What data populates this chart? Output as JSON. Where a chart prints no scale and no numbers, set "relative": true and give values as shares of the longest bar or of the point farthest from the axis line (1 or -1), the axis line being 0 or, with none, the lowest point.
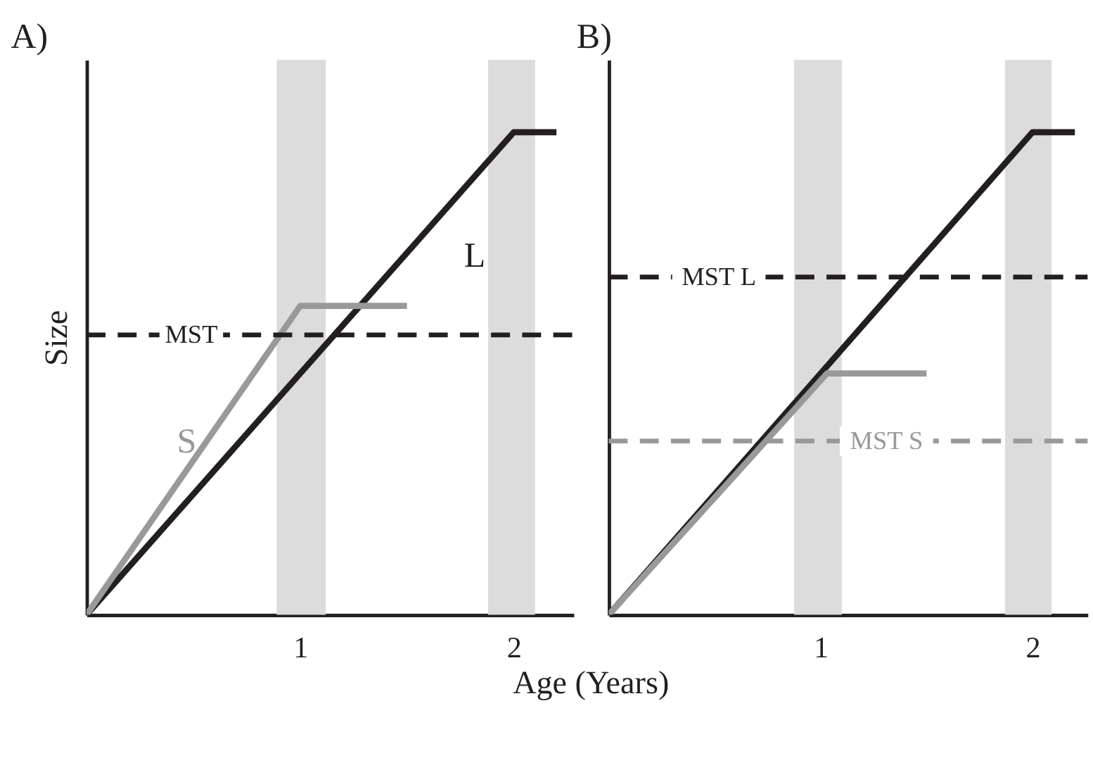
{
  "chart_data": [
    {
      "type": "line",
      "title": "A)",
      "xlabel": "Age (Years)",
      "ylabel": "Size",
      "relative": true,
      "xlim": [
        0,
        2.28
      ],
      "xticks": [
        1,
        2
      ],
      "tick_labels": "x",
      "grid": false,
      "line_style": "solid",
      "marker": "none",
      "series": [
        {
          "color": "#231f20",
          "x": [
            0,
            2,
            2.2
          ],
          "values": [
            0,
            1,
            1
          ]
        },
        {
          "color": "#999999",
          "x": [
            0,
            1,
            1.5
          ],
          "values": [
            0,
            0.64,
            0.64
          ]
        }
      ],
      "bands": [
        {
          "axis": "x",
          "from": 0.89,
          "to": 1.12,
          "color": "#dcdcdc"
        },
        {
          "axis": "x",
          "from": 1.88,
          "to": 2.1,
          "color": "#dcdcdc"
        }
      ],
      "ref_lines": [
        {
          "axis": "y",
          "value": 0.58,
          "label": "MST",
          "color": "#231f20",
          "line_style": "dashed"
        }
      ],
      "annotations": [
        "L",
        "S"
      ]
    },
    {
      "type": "line",
      "title": "B)",
      "relative": true,
      "xlim": [
        0,
        2.26
      ],
      "xticks": [
        1,
        2
      ],
      "tick_labels": "x",
      "grid": false,
      "line_style": "solid",
      "marker": "none",
      "series": [
        {
          "color": "#231f20",
          "x": [
            0,
            2,
            2.2
          ],
          "values": [
            0,
            1,
            1
          ]
        },
        {
          "color": "#999999",
          "x": [
            0,
            1.03,
            1.5
          ],
          "values": [
            0,
            0.5,
            0.5
          ]
        }
      ],
      "bands": [
        {
          "axis": "x",
          "from": 0.875,
          "to": 1.1,
          "color": "#dcdcdc"
        },
        {
          "axis": "x",
          "from": 1.87,
          "to": 2.09,
          "color": "#dcdcdc"
        }
      ],
      "ref_lines": [
        {
          "axis": "y",
          "value": 0.7,
          "label": "MST L",
          "color": "#231f20",
          "line_style": "dashed"
        },
        {
          "axis": "y",
          "value": 0.36,
          "label": "MST S",
          "color": "#999999",
          "line_style": "dashed"
        }
      ]
    }
  ]
}
